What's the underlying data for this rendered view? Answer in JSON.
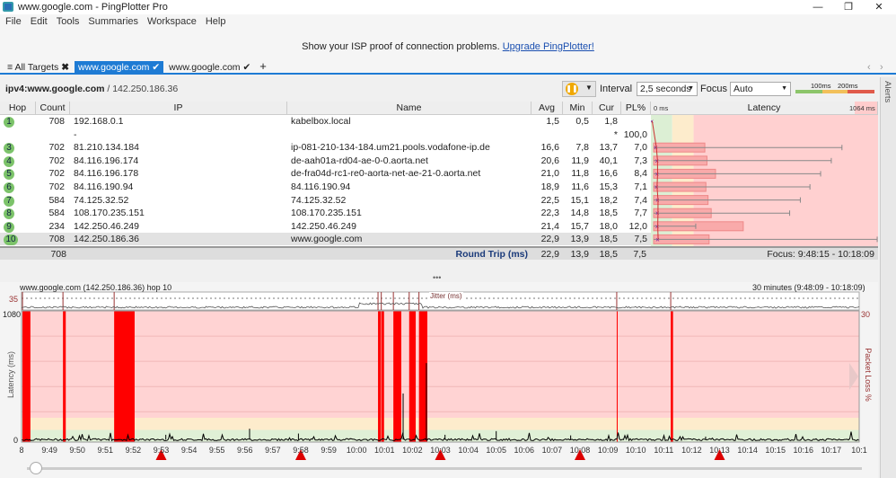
{
  "window": {
    "title": "www.google.com - PingPlotter Pro",
    "controls": [
      "—",
      "❐",
      "✕"
    ]
  },
  "menu": [
    "File",
    "Edit",
    "Tools",
    "Summaries",
    "Workspace",
    "Help"
  ],
  "banner": {
    "text": "Show your ISP proof of connection problems. ",
    "link": "Upgrade PingPlotter!"
  },
  "tabs": [
    {
      "label": "All Targets",
      "icon": "close-icon",
      "glyph": "✖"
    },
    {
      "label": "www.google.com",
      "icon": "check-icon",
      "glyph": "✔",
      "active": true
    },
    {
      "label": "www.google.com",
      "icon": "check-icon",
      "glyph": "✔"
    }
  ],
  "add_tab": "+",
  "target": {
    "name": "ipv4:www.google.com",
    "ip": " / 142.250.186.36",
    "interval_label": "Interval",
    "interval": "2,5 seconds",
    "focus_label": "Focus",
    "focus": "Auto",
    "legend": [
      "100ms",
      "200ms"
    ]
  },
  "alerts": "Alerts",
  "colors": {
    "accent": "#1e7bd4",
    "good": "#8cc56a",
    "warn": "#f2c05a",
    "bad": "#e05a4a",
    "loss": "#ff0000",
    "bad_bg": "#ffd0d0"
  },
  "table": {
    "headers": [
      "Hop",
      "Count",
      "IP",
      "Name",
      "Avg",
      "Min",
      "Cur",
      "PL%",
      "Latency"
    ],
    "latency_min": "0 ms",
    "latency_max": "1064 ms",
    "rows": [
      {
        "hop": "1",
        "count": "708",
        "ip": "192.168.0.1",
        "name": "kabelbox.local",
        "avg": "1,5",
        "min": "0,5",
        "cur": "1,8",
        "pl": "",
        "bar_ms": 0,
        "max_ms": 0
      },
      {
        "hop": "",
        "count": "",
        "ip": "-",
        "name": "",
        "avg": "",
        "min": "",
        "cur": "*",
        "pl": "100,0",
        "bar_ms": 0,
        "max_ms": 0
      },
      {
        "hop": "3",
        "count": "702",
        "ip": "81.210.134.184",
        "name": "ip-081-210-134-184.um21.pools.vodafone-ip.de",
        "avg": "16,6",
        "min": "7,8",
        "cur": "13,7",
        "pl": "7,0",
        "bar_ms": 240,
        "max_ms": 895
      },
      {
        "hop": "4",
        "count": "702",
        "ip": "84.116.196.174",
        "name": "de-aah01a-rd04-ae-0-0.aorta.net",
        "avg": "20,6",
        "min": "11,9",
        "cur": "40,1",
        "pl": "7,3",
        "bar_ms": 250,
        "max_ms": 845
      },
      {
        "hop": "5",
        "count": "702",
        "ip": "84.116.196.178",
        "name": "de-fra04d-rc1-re0-aorta-net-ae-21-0.aorta.net",
        "avg": "21,0",
        "min": "11,8",
        "cur": "16,6",
        "pl": "8,4",
        "bar_ms": 290,
        "max_ms": 795
      },
      {
        "hop": "6",
        "count": "702",
        "ip": "84.116.190.94",
        "name": "84.116.190.94",
        "avg": "18,9",
        "min": "11,6",
        "cur": "15,3",
        "pl": "7,1",
        "bar_ms": 245,
        "max_ms": 745
      },
      {
        "hop": "7",
        "count": "584",
        "ip": "74.125.32.52",
        "name": "74.125.32.52",
        "avg": "22,5",
        "min": "15,1",
        "cur": "18,2",
        "pl": "7,4",
        "bar_ms": 255,
        "max_ms": 700
      },
      {
        "hop": "8",
        "count": "584",
        "ip": "108.170.235.151",
        "name": "108.170.235.151",
        "avg": "22,3",
        "min": "14,8",
        "cur": "18,5",
        "pl": "7,7",
        "bar_ms": 270,
        "max_ms": 650
      },
      {
        "hop": "9",
        "count": "234",
        "ip": "142.250.46.249",
        "name": "142.250.46.249",
        "avg": "21,4",
        "min": "15,7",
        "cur": "18,0",
        "pl": "12,0",
        "bar_ms": 420,
        "max_ms": 210
      },
      {
        "hop": "10",
        "count": "708",
        "ip": "142.250.186.36",
        "name": "www.google.com",
        "avg": "22,9",
        "min": "13,9",
        "cur": "18,5",
        "pl": "7,5",
        "bar_ms": 260,
        "max_ms": 1060,
        "selected": true
      }
    ],
    "summary": {
      "count": "708",
      "label": "Round Trip (ms)",
      "avg": "22,9",
      "min": "13,9",
      "cur": "18,5",
      "pl": "7,5",
      "focus": "Focus: 9:48:15 - 10:18:09"
    }
  },
  "chart_data": {
    "type": "line",
    "title": "www.google.com (142.250.186.36) hop 10",
    "range_label": "30 minutes (9:48:09 - 10:18:09)",
    "ylabel": "Latency (ms)",
    "y2label": "Packet Loss %",
    "ylim": [
      0,
      1080
    ],
    "y2lim": [
      0,
      30
    ],
    "y_ticks": [
      "1080",
      "0"
    ],
    "y2_ticks": [
      "30"
    ],
    "jitter_label": "Jitter (ms)",
    "jitter_tick": "35",
    "xlim": [
      "9:48",
      "10:18"
    ],
    "x_ticks": [
      "8",
      "9:49",
      "9:50",
      "9:51",
      "9:52",
      "9:53",
      "9:54",
      "9:55",
      "9:56",
      "9:57",
      "9:58",
      "9:59",
      "10:00",
      "10:01",
      "10:02",
      "10:03",
      "10:04",
      "10:05",
      "10:06",
      "10:07",
      "10:08",
      "10:09",
      "10:10",
      "10:11",
      "10:12",
      "10:13",
      "10:14",
      "10:15",
      "10:16",
      "10:17",
      "10:1"
    ],
    "bands_ms": [
      100,
      200
    ],
    "baseline_ms": 20,
    "spikes": [
      [
        "9:53:10",
        60
      ],
      [
        "9:56:10",
        110
      ],
      [
        "9:57:55",
        70
      ],
      [
        "10:01:40",
        400
      ],
      [
        "10:02:30",
        650
      ],
      [
        "10:03:10",
        60
      ],
      [
        "10:05:00",
        90
      ],
      [
        "10:07:40",
        55
      ],
      [
        "10:12:30",
        45
      ]
    ],
    "loss_events": [
      [
        "9:48:02",
        "9:48:19"
      ],
      [
        "9:49:29",
        "9:49:35"
      ],
      [
        "9:51:19",
        "9:52:03"
      ],
      [
        "10:00:46",
        "10:00:52"
      ],
      [
        "10:00:53",
        "10:00:59"
      ],
      [
        "10:01:19",
        "10:01:36"
      ],
      [
        "10:01:53",
        "10:02:07"
      ],
      [
        "10:02:14",
        "10:02:32"
      ],
      [
        "10:09:19",
        "10:09:21"
      ],
      [
        "10:11:15",
        "10:11:20"
      ]
    ],
    "markers": [
      "9:53",
      "9:58",
      "10:03",
      "10:08",
      "10:13"
    ]
  }
}
